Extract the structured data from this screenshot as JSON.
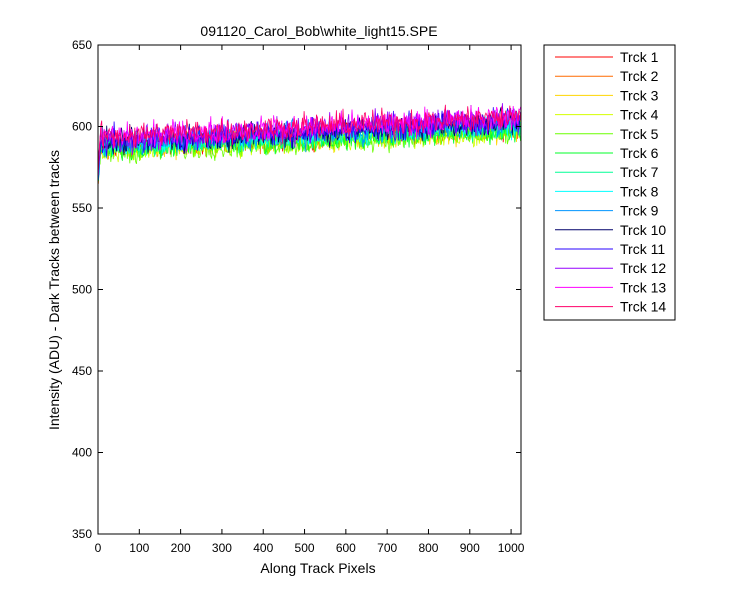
{
  "chart_data": {
    "type": "line",
    "title": "091120_Carol_Bob\\white_light15.SPE",
    "xlabel": "Along Track Pixels",
    "ylabel": "Intensity (ADU) - Dark Tracks between tracks",
    "xlim": [
      0,
      1024
    ],
    "ylim": [
      350,
      650
    ],
    "x_ticks": [
      0,
      100,
      200,
      300,
      400,
      500,
      600,
      700,
      800,
      900,
      1000
    ],
    "y_ticks": [
      350,
      400,
      450,
      500,
      550,
      600,
      650
    ],
    "grid": false,
    "legend_position": "outside-top-right",
    "x_range_points": [
      1,
      1024
    ],
    "series": [
      {
        "name": "Trck 1",
        "color": "#ff0000",
        "start": 588,
        "end": 600,
        "noise": 7
      },
      {
        "name": "Trck 2",
        "color": "#ff6a00",
        "start": 587,
        "end": 599,
        "noise": 7
      },
      {
        "name": "Trck 3",
        "color": "#ffd400",
        "start": 586,
        "end": 598,
        "noise": 7
      },
      {
        "name": "Trck 4",
        "color": "#d4ff00",
        "start": 585,
        "end": 597,
        "noise": 7
      },
      {
        "name": "Trck 5",
        "color": "#6aff00",
        "start": 584,
        "end": 596,
        "noise": 7
      },
      {
        "name": "Trck 6",
        "color": "#00ff2a",
        "start": 586,
        "end": 598,
        "noise": 7
      },
      {
        "name": "Trck 7",
        "color": "#00ff95",
        "start": 587,
        "end": 600,
        "noise": 7
      },
      {
        "name": "Trck 8",
        "color": "#00ffff",
        "start": 588,
        "end": 601,
        "noise": 7
      },
      {
        "name": "Trck 9",
        "color": "#0095ff",
        "start": 589,
        "end": 602,
        "noise": 8
      },
      {
        "name": "Trck 10",
        "color": "#00006a",
        "start": 590,
        "end": 603,
        "noise": 8
      },
      {
        "name": "Trck 11",
        "color": "#2a00ff",
        "start": 591,
        "end": 604,
        "noise": 8
      },
      {
        "name": "Trck 12",
        "color": "#9500ff",
        "start": 592,
        "end": 605,
        "noise": 8
      },
      {
        "name": "Trck 13",
        "color": "#ff00ff",
        "start": 593,
        "end": 606,
        "noise": 8
      },
      {
        "name": "Trck 14",
        "color": "#ff006a",
        "start": 594,
        "end": 606,
        "noise": 8
      }
    ]
  }
}
